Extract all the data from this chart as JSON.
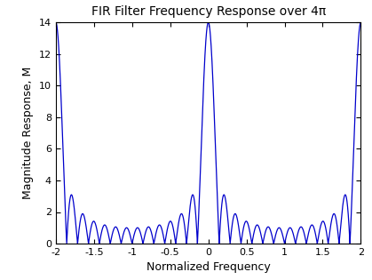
{
  "title": "FIR Filter Frequency Response over 4π",
  "xlabel": "Normalized Frequency",
  "ylabel": "Magnitude Response, M",
  "xlim": [
    -2,
    2
  ],
  "ylim": [
    0,
    14
  ],
  "xticks": [
    -2,
    -1.5,
    -1,
    -0.5,
    0,
    0.5,
    1,
    1.5,
    2
  ],
  "xtick_labels": [
    "-2",
    "-1.5",
    "-1",
    "-0.5",
    "0",
    "0.5",
    "1",
    "1.5",
    "2"
  ],
  "yticks": [
    0,
    2,
    4,
    6,
    8,
    10,
    12,
    14
  ],
  "line_color": "#0000cc",
  "N": 14,
  "num_points": 8000,
  "freq_scale": 0.5,
  "background_color": "#ffffff",
  "title_fontsize": 10,
  "label_fontsize": 9,
  "tick_fontsize": 8,
  "linewidth": 0.9
}
